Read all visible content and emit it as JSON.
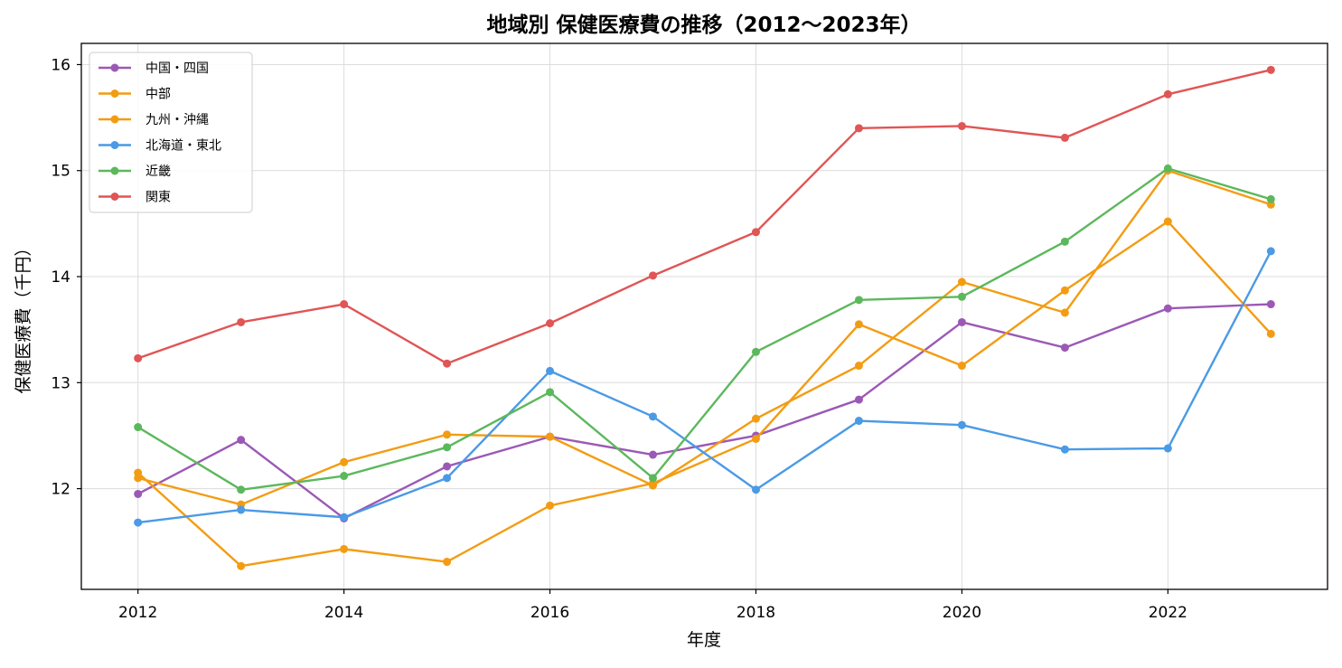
{
  "chart_data": {
    "type": "line",
    "title": "地域別 保健医療費の推移（2012〜2023年）",
    "xlabel": "年度",
    "ylabel": "保健医療費（千円）",
    "x": [
      2012,
      2013,
      2014,
      2015,
      2016,
      2017,
      2018,
      2019,
      2020,
      2021,
      2022,
      2023
    ],
    "xlim": [
      2011.45,
      2023.55
    ],
    "ylim": [
      11.05,
      16.2
    ],
    "xticks": [
      2012,
      2014,
      2016,
      2018,
      2020,
      2022
    ],
    "yticks": [
      12,
      13,
      14,
      15,
      16
    ],
    "grid": true,
    "legend_position": "upper left",
    "series": [
      {
        "name": "中国・四国",
        "color": "#9b59b6",
        "values": [
          11.95,
          12.46,
          11.72,
          12.21,
          12.49,
          12.32,
          12.5,
          12.84,
          13.57,
          13.33,
          13.7,
          13.74
        ]
      },
      {
        "name": "中部",
        "color": "#f39c12",
        "values": [
          12.1,
          11.85,
          12.25,
          12.51,
          12.49,
          12.03,
          12.66,
          13.16,
          13.95,
          13.66,
          15.0,
          14.68
        ]
      },
      {
        "name": "九州・沖縄",
        "color": "#f39c12",
        "values": [
          12.15,
          11.27,
          11.43,
          11.31,
          11.84,
          12.05,
          12.47,
          13.55,
          13.16,
          13.87,
          14.52,
          13.46
        ]
      },
      {
        "name": "北海道・東北",
        "color": "#4a9ae6",
        "values": [
          11.68,
          11.8,
          11.73,
          12.1,
          13.11,
          12.68,
          11.99,
          12.64,
          12.6,
          12.37,
          12.38,
          14.24
        ]
      },
      {
        "name": "近畿",
        "color": "#5cb85c",
        "values": [
          12.58,
          11.99,
          12.12,
          12.39,
          12.91,
          12.1,
          13.29,
          13.78,
          13.81,
          14.33,
          15.02,
          14.73
        ]
      },
      {
        "name": "関東",
        "color": "#e05555",
        "values": [
          13.23,
          13.57,
          13.74,
          13.18,
          13.56,
          14.01,
          14.42,
          15.4,
          15.42,
          15.31,
          15.72,
          15.95
        ]
      }
    ]
  }
}
